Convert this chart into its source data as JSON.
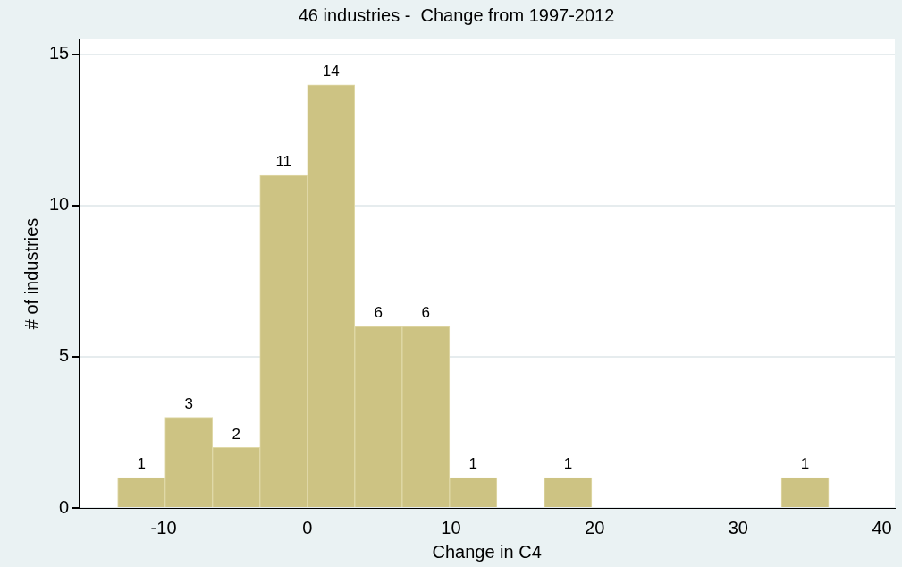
{
  "chart_data": {
    "type": "histogram",
    "title": "46 industries -  Change from 1997-2012",
    "xlabel": "Change in C4",
    "ylabel": "# of industries",
    "bins": [
      -13.2,
      -9.9,
      -6.6,
      -3.3,
      0,
      3.3,
      6.6,
      9.9,
      13.2,
      16.5,
      19.8,
      23.1,
      26.4,
      29.7,
      33,
      36.3
    ],
    "values": [
      1,
      3,
      2,
      11,
      14,
      6,
      6,
      1,
      0,
      1,
      0,
      0,
      0,
      0,
      1
    ],
    "value_labels": [
      "1",
      "3",
      "2",
      "11",
      "14",
      "6",
      "6",
      "1",
      null,
      "1",
      null,
      null,
      null,
      null,
      "1"
    ],
    "color": "#cdc383",
    "xlim": [
      -15.9,
      40.9
    ],
    "xticks": [
      -10,
      0,
      10,
      20,
      30,
      40
    ],
    "ylim": [
      0,
      15.5
    ],
    "yticks": [
      0,
      5,
      10,
      15
    ],
    "grid": "y",
    "legend": false
  }
}
